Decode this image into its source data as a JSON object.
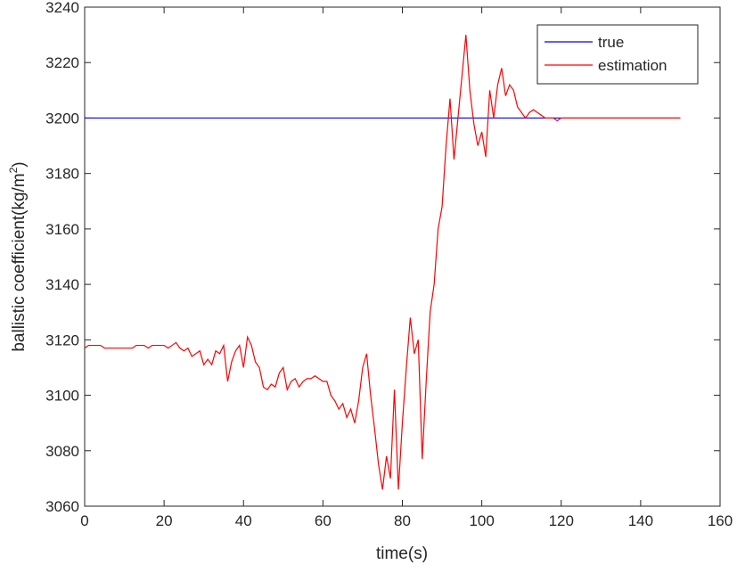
{
  "chart_data": {
    "type": "line",
    "xlabel": "time(s)",
    "ylabel": [
      "ballistic coefficient(kg/m",
      "2",
      ")"
    ],
    "xlim": [
      0,
      160
    ],
    "xticks": [
      0,
      20,
      40,
      60,
      80,
      100,
      120,
      140,
      160
    ],
    "ylim": [
      3060,
      3240
    ],
    "yticks": [
      3060,
      3080,
      3100,
      3120,
      3140,
      3160,
      3180,
      3200,
      3220,
      3240
    ],
    "legend": "top-right",
    "series": [
      {
        "name": "true",
        "color": "#0000ff",
        "x": [
          0,
          150
        ],
        "values": [
          3200,
          3200
        ]
      },
      {
        "name": "estimation",
        "color": "#ff0000",
        "x": [
          0,
          1,
          2,
          3,
          4,
          5,
          6,
          7,
          8,
          9,
          10,
          11,
          12,
          13,
          14,
          15,
          16,
          17,
          18,
          19,
          20,
          21,
          22,
          23,
          24,
          25,
          26,
          27,
          28,
          29,
          30,
          31,
          32,
          33,
          34,
          35,
          36,
          37,
          38,
          39,
          40,
          41,
          42,
          43,
          44,
          45,
          46,
          47,
          48,
          49,
          50,
          51,
          52,
          53,
          54,
          55,
          56,
          57,
          58,
          59,
          60,
          61,
          62,
          63,
          64,
          65,
          66,
          67,
          68,
          69,
          70,
          71,
          72,
          73,
          74,
          75,
          76,
          77,
          78,
          79,
          80,
          81,
          82,
          83,
          84,
          85,
          86,
          87,
          88,
          89,
          90,
          91,
          92,
          93,
          94,
          95,
          96,
          97,
          98,
          99,
          100,
          101,
          102,
          103,
          104,
          105,
          106,
          107,
          108,
          109,
          110,
          111,
          112,
          113,
          114,
          115,
          116,
          117,
          118,
          119,
          120,
          125,
          130,
          135,
          140,
          145,
          150
        ],
        "values": [
          3117,
          3118,
          3118,
          3118,
          3118,
          3117,
          3117,
          3117,
          3117,
          3117,
          3117,
          3117,
          3117,
          3118,
          3118,
          3118,
          3117,
          3118,
          3118,
          3118,
          3118,
          3117,
          3118,
          3119,
          3117,
          3116,
          3117,
          3114,
          3115,
          3116,
          3111,
          3113,
          3111,
          3116,
          3115,
          3118,
          3105,
          3112,
          3116,
          3118,
          3110,
          3121,
          3118,
          3112,
          3110,
          3103,
          3102,
          3104,
          3103,
          3108,
          3110,
          3102,
          3105,
          3106,
          3103,
          3105,
          3106,
          3106,
          3107,
          3106,
          3105,
          3105,
          3100,
          3098,
          3095,
          3097,
          3092,
          3095,
          3090,
          3098,
          3110,
          3115,
          3100,
          3088,
          3075,
          3066,
          3078,
          3070,
          3102,
          3066,
          3090,
          3110,
          3128,
          3115,
          3120,
          3077,
          3105,
          3130,
          3140,
          3160,
          3168,
          3190,
          3207,
          3185,
          3200,
          3215,
          3230,
          3210,
          3198,
          3190,
          3195,
          3186,
          3210,
          3200,
          3212,
          3218,
          3208,
          3212,
          3210,
          3204,
          3202,
          3200,
          3202,
          3203,
          3202,
          3201,
          3200,
          3200,
          3200,
          3199,
          3200,
          3200,
          3200,
          3200,
          3200,
          3200,
          3200
        ]
      }
    ]
  }
}
